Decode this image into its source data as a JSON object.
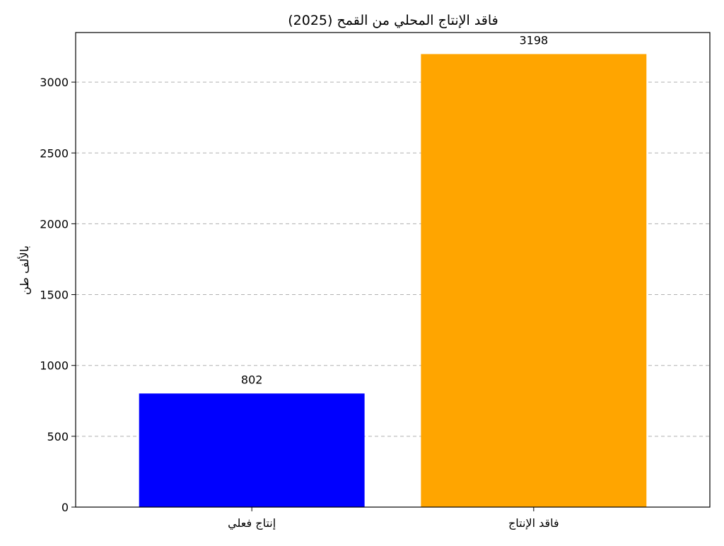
{
  "chart_data": {
    "type": "bar",
    "title": "فاقد الإنتاج المحلي من القمح (2025)",
    "xlabel": "",
    "ylabel": "بالألف طن",
    "categories": [
      "إنتاج فعلي",
      "فاقد الإنتاج"
    ],
    "values": [
      802,
      3198
    ],
    "value_labels": [
      "802",
      "3198"
    ],
    "bar_colors": [
      "#0000ff",
      "#ffa500"
    ],
    "ylim": [
      0,
      3350
    ],
    "yticks": [
      0,
      500,
      1000,
      1500,
      2000,
      2500,
      3000
    ],
    "ytick_labels": [
      "0",
      "500",
      "1000",
      "1500",
      "2000",
      "2500",
      "3000"
    ],
    "grid": "y-dashed",
    "legend": "none"
  }
}
